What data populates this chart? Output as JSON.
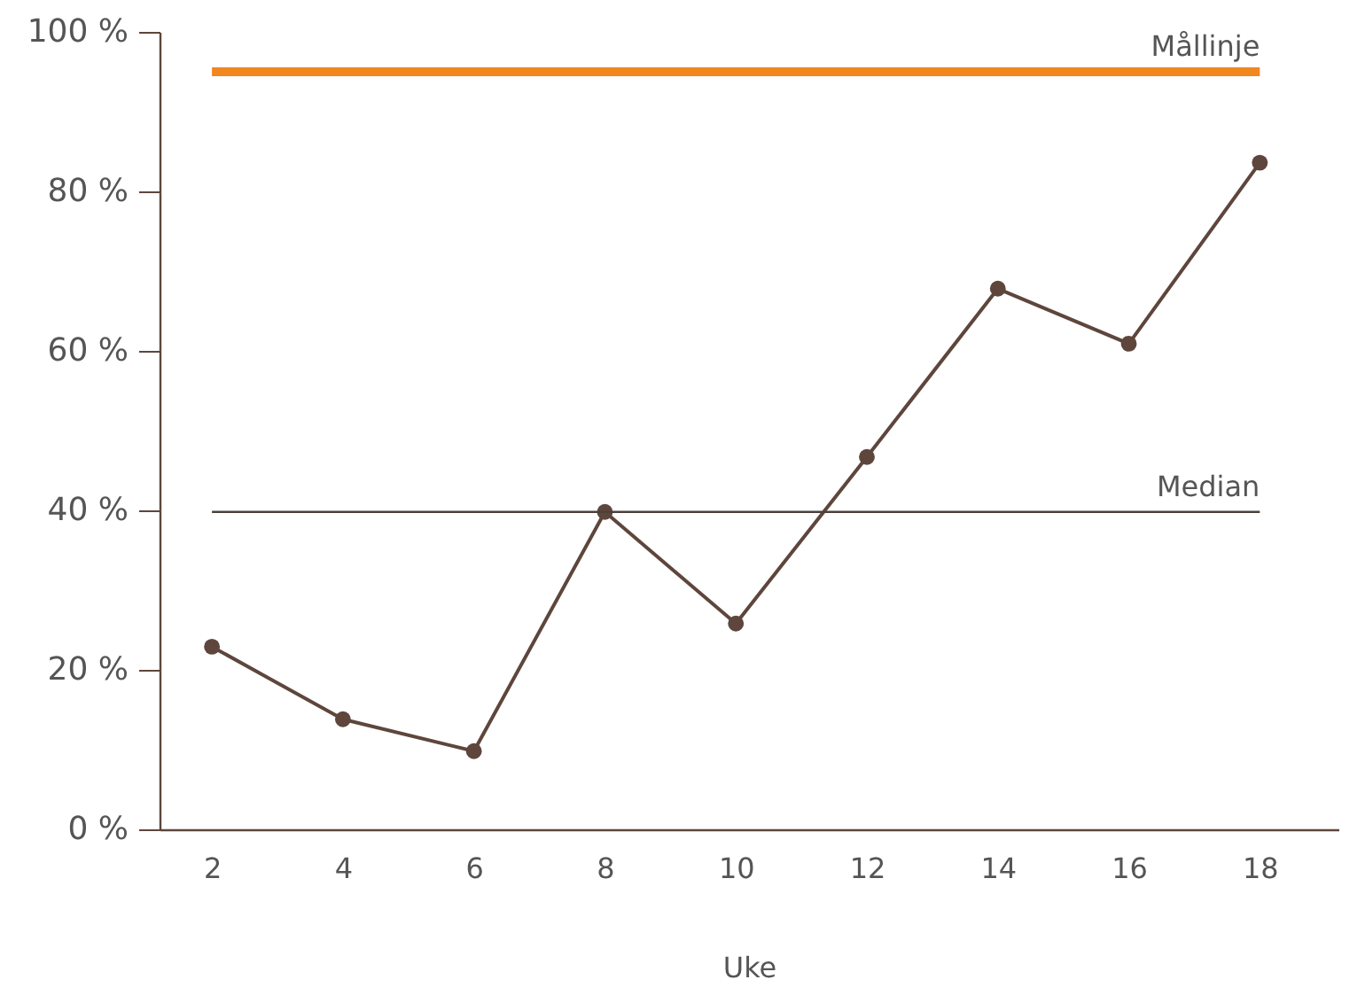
{
  "chart_data": {
    "type": "line",
    "xlabel": "Uke",
    "x": [
      2,
      4,
      6,
      8,
      10,
      12,
      14,
      16,
      18
    ],
    "series": [
      {
        "color": "#5e463c",
        "values": [
          22.9,
          13.8,
          9.8,
          39.8,
          25.8,
          46.7,
          67.8,
          60.9,
          83.6
        ]
      }
    ],
    "marker": "circle",
    "xlim": [
      1.2,
      19.2
    ],
    "xticks": [
      2,
      4,
      6,
      8,
      10,
      12,
      14,
      16,
      18
    ],
    "ylim": [
      0,
      100
    ],
    "yticks": [
      {
        "value": 0,
        "label": "0 %"
      },
      {
        "value": 20,
        "label": "20 %"
      },
      {
        "value": 40,
        "label": "40 %"
      },
      {
        "value": 60,
        "label": "60 %"
      },
      {
        "value": 80,
        "label": "80 %"
      },
      {
        "value": 100,
        "label": "100 %"
      }
    ],
    "ref_lines": [
      {
        "axis": "y",
        "value": 95,
        "label": "Mållinje",
        "color": "#f0871f"
      },
      {
        "axis": "y",
        "value": 39.8,
        "label": "Median",
        "color": "#4d3f3a"
      }
    ],
    "grid": false
  }
}
